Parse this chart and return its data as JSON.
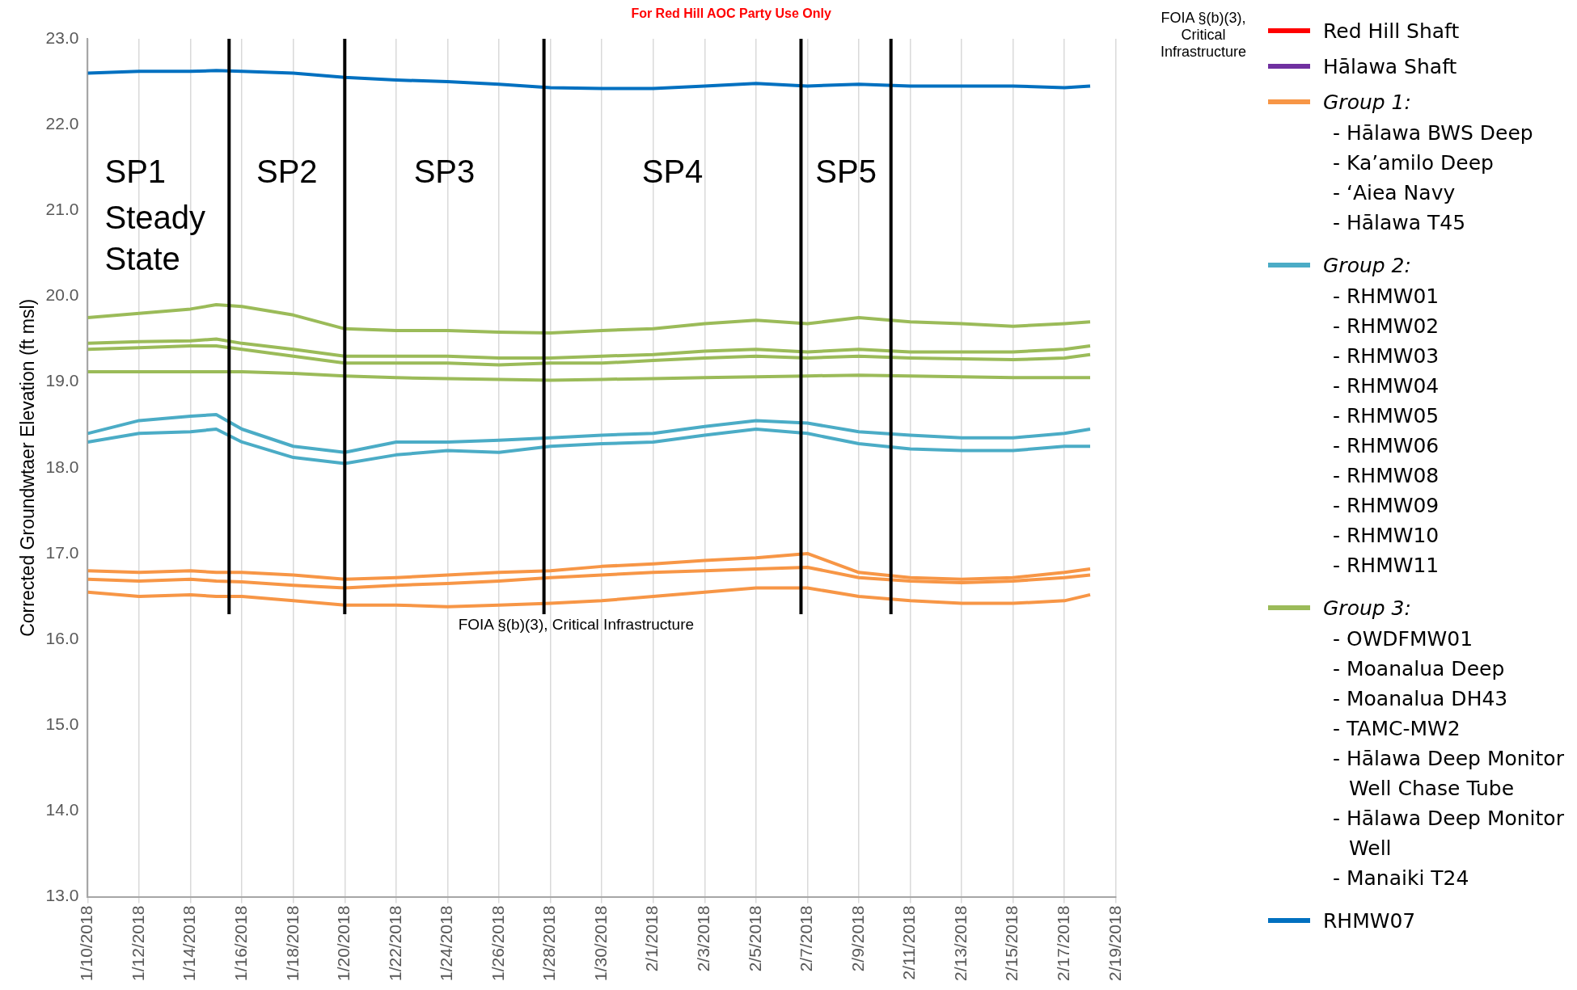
{
  "chart_data": {
    "type": "line",
    "ylabel": "Corrected Groundwtaer Elevation (ft msl)",
    "x": [
      "2018-01-10",
      "2018-01-12",
      "2018-01-14",
      "2018-01-15",
      "2018-01-16",
      "2018-01-18",
      "2018-01-20",
      "2018-01-22",
      "2018-01-24",
      "2018-01-26",
      "2018-01-28",
      "2018-01-30",
      "2018-02-01",
      "2018-02-03",
      "2018-02-05",
      "2018-02-07",
      "2018-02-09",
      "2018-02-11",
      "2018-02-13",
      "2018-02-15",
      "2018-02-17",
      "2018-02-18"
    ],
    "series": [
      {
        "name": "Red Hill Shaft",
        "color": "#ff0000",
        "values": [
          null,
          null,
          null,
          null,
          null,
          null,
          null,
          null,
          null,
          null,
          null,
          null,
          null,
          null,
          null,
          null,
          null,
          null,
          null,
          null,
          null,
          null
        ]
      },
      {
        "name": "Hālawa Shaft",
        "color": "#7030a0",
        "values": [
          null,
          null,
          null,
          null,
          null,
          null,
          null,
          null,
          null,
          null,
          null,
          null,
          null,
          null,
          null,
          null,
          null,
          null,
          null,
          null,
          null,
          null
        ]
      },
      {
        "name": "Group 1:",
        "color": "#f79646",
        "values": [
          16.8,
          16.78,
          16.8,
          16.78,
          16.78,
          16.75,
          16.7,
          16.72,
          16.75,
          16.78,
          16.8,
          16.85,
          16.88,
          16.92,
          16.95,
          17.0,
          16.78,
          16.72,
          16.7,
          16.72,
          16.78,
          16.82
        ]
      },
      {
        "name": "Group 2:",
        "color": "#4bacc6",
        "values": [
          18.4,
          18.55,
          18.6,
          18.62,
          18.45,
          18.25,
          18.18,
          18.3,
          18.3,
          18.32,
          18.35,
          18.38,
          18.4,
          18.48,
          18.55,
          18.52,
          18.42,
          18.38,
          18.35,
          18.35,
          18.4,
          18.45
        ]
      },
      {
        "name": "Group 3:",
        "color": "#9bbb59",
        "values": [
          19.75,
          19.8,
          19.85,
          19.9,
          19.88,
          19.78,
          19.62,
          19.6,
          19.6,
          19.58,
          19.57,
          19.6,
          19.62,
          19.68,
          19.72,
          19.68,
          19.75,
          19.7,
          19.68,
          19.65,
          19.68,
          19.7
        ]
      },
      {
        "name": "RHMW07",
        "color": "#0070c0",
        "values": [
          22.6,
          22.62,
          22.62,
          22.63,
          22.62,
          22.6,
          22.55,
          22.52,
          22.5,
          22.47,
          22.43,
          22.42,
          22.42,
          22.45,
          22.48,
          22.45,
          22.47,
          22.45,
          22.45,
          22.45,
          22.43,
          22.45
        ]
      },
      {
        "color": "#f79646",
        "values": [
          16.7,
          16.68,
          16.7,
          16.68,
          16.67,
          16.63,
          16.6,
          16.63,
          16.65,
          16.68,
          16.72,
          16.75,
          16.78,
          16.8,
          16.82,
          16.84,
          16.72,
          16.68,
          16.66,
          16.68,
          16.72,
          16.75
        ]
      },
      {
        "color": "#f79646",
        "values": [
          16.55,
          16.5,
          16.52,
          16.5,
          16.5,
          16.45,
          16.4,
          16.4,
          16.38,
          16.4,
          16.42,
          16.45,
          16.5,
          16.55,
          16.6,
          16.6,
          16.5,
          16.45,
          16.42,
          16.42,
          16.45,
          16.52
        ]
      },
      {
        "color": "#4bacc6",
        "values": [
          18.3,
          18.4,
          18.42,
          18.45,
          18.3,
          18.12,
          18.05,
          18.15,
          18.2,
          18.18,
          18.25,
          18.28,
          18.3,
          18.38,
          18.45,
          18.4,
          18.28,
          18.22,
          18.2,
          18.2,
          18.25,
          18.25
        ]
      },
      {
        "color": "#9bbb59",
        "values": [
          19.45,
          19.47,
          19.48,
          19.5,
          19.45,
          19.38,
          19.3,
          19.3,
          19.3,
          19.28,
          19.28,
          19.3,
          19.32,
          19.36,
          19.38,
          19.35,
          19.38,
          19.35,
          19.35,
          19.35,
          19.38,
          19.42
        ]
      },
      {
        "color": "#9bbb59",
        "values": [
          19.38,
          19.4,
          19.42,
          19.42,
          19.38,
          19.3,
          19.22,
          19.22,
          19.22,
          19.2,
          19.22,
          19.22,
          19.25,
          19.28,
          19.3,
          19.28,
          19.3,
          19.28,
          19.27,
          19.26,
          19.28,
          19.32
        ]
      },
      {
        "color": "#9bbb59",
        "values": [
          19.12,
          19.12,
          19.12,
          19.12,
          19.12,
          19.1,
          19.07,
          19.05,
          19.04,
          19.03,
          19.02,
          19.03,
          19.04,
          19.05,
          19.06,
          19.07,
          19.08,
          19.07,
          19.06,
          19.05,
          19.05,
          19.05
        ]
      }
    ],
    "xlim": [
      "2018-01-10",
      "2018-02-19"
    ],
    "xticks": [
      {
        "value": "2018-01-10",
        "label": "1/10/2018"
      },
      {
        "value": "2018-01-12",
        "label": "1/12/2018"
      },
      {
        "value": "2018-01-14",
        "label": "1/14/2018"
      },
      {
        "value": "2018-01-16",
        "label": "1/16/2018"
      },
      {
        "value": "2018-01-18",
        "label": "1/18/2018"
      },
      {
        "value": "2018-01-20",
        "label": "1/20/2018"
      },
      {
        "value": "2018-01-22",
        "label": "1/22/2018"
      },
      {
        "value": "2018-01-24",
        "label": "1/24/2018"
      },
      {
        "value": "2018-01-26",
        "label": "1/26/2018"
      },
      {
        "value": "2018-01-28",
        "label": "1/28/2018"
      },
      {
        "value": "2018-01-30",
        "label": "1/30/2018"
      },
      {
        "value": "2018-02-01",
        "label": "2/1/2018"
      },
      {
        "value": "2018-02-03",
        "label": "2/3/2018"
      },
      {
        "value": "2018-02-05",
        "label": "2/5/2018"
      },
      {
        "value": "2018-02-07",
        "label": "2/7/2018"
      },
      {
        "value": "2018-02-09",
        "label": "2/9/2018"
      },
      {
        "value": "2018-02-11",
        "label": "2/11/2018"
      },
      {
        "value": "2018-02-13",
        "label": "2/13/2018"
      },
      {
        "value": "2018-02-15",
        "label": "2/15/2018"
      },
      {
        "value": "2018-02-17",
        "label": "2/17/2018"
      },
      {
        "value": "2018-02-19",
        "label": "2/19/2018"
      }
    ],
    "ylim": [
      13,
      23
    ],
    "yticks": [
      {
        "value": 13,
        "label": "13.0"
      },
      {
        "value": 14,
        "label": "14.0"
      },
      {
        "value": 15,
        "label": "15.0"
      },
      {
        "value": 16,
        "label": "16.0"
      },
      {
        "value": 17,
        "label": "17.0"
      },
      {
        "value": 18,
        "label": "18.0"
      },
      {
        "value": 19,
        "label": "19.0"
      },
      {
        "value": 20,
        "label": "20.0"
      },
      {
        "value": 21,
        "label": "21.0"
      },
      {
        "value": 22,
        "label": "22.0"
      },
      {
        "value": 23,
        "label": "23.0"
      }
    ],
    "grid": "x",
    "legend": "right",
    "marker": "none",
    "line_style": "solid",
    "ref_lines": [
      {
        "axis": "x",
        "value": "2018-01-15T12:00",
        "color": "#000000"
      },
      {
        "axis": "x",
        "value": "2018-01-20",
        "color": "#000000"
      },
      {
        "axis": "x",
        "value": "2018-01-27T18:00",
        "color": "#000000"
      },
      {
        "axis": "x",
        "value": "2018-02-06T18:00",
        "color": "#000000"
      },
      {
        "axis": "x",
        "value": "2018-02-10T06:00",
        "color": "#000000"
      }
    ],
    "annotations": [
      "For Red Hill AOC Party Use Only",
      "FOIA §(b)(3), Critical Infrastructure",
      "FOIA §(b)(3), Critical Infrastructure",
      "SP1",
      "Steady State",
      "SP2",
      "SP3",
      "SP4",
      "SP5",
      "- Hālawa BWS Deep",
      "- Ka’amilo Deep",
      "- ‘Aiea Navy",
      "- Hālawa T45",
      "- RHMW01",
      "- RHMW02",
      "- RHMW03",
      "- RHMW04",
      "- RHMW05",
      "- RHMW06",
      "- RHMW08",
      "- RHMW09",
      "- RHMW10",
      "- RHMW11",
      "- OWDFMW01",
      "- Moanalua Deep",
      "- Moanalua DH43",
      "- TAMC-MW2",
      "- Hālawa Deep Monitor Well Chase Tube",
      "- Hālawa Deep Monitor Well",
      "- Manaiki T24"
    ]
  }
}
